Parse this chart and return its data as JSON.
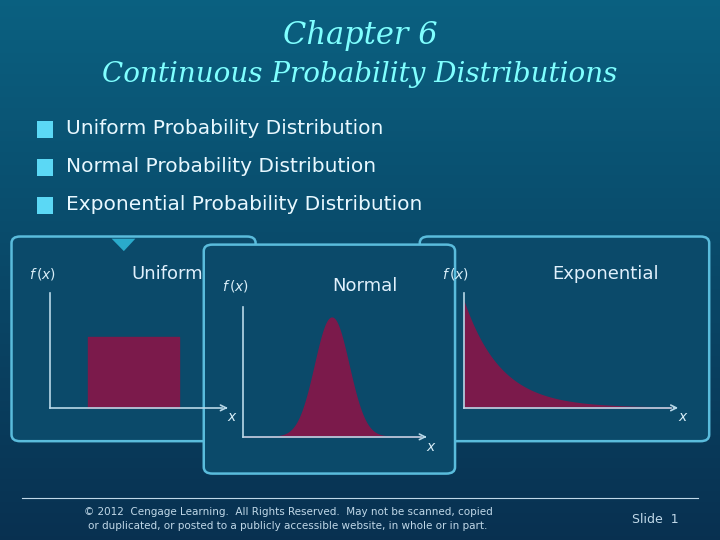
{
  "title_line1": "Chapter 6",
  "title_line2": "Continuous Probability Distributions",
  "title_color": "#7FFFFF",
  "bullet_color": "#5BD8F5",
  "bullet_text_color": "#E8F8FF",
  "bullets": [
    "Uniform Probability Distribution",
    "Normal Probability Distribution",
    "Exponential Probability Distribution"
  ],
  "plot_fill": "#7B1A4B",
  "axes_color": "#B8D8E8",
  "label_color": "#D8EEF8",
  "footer_color": "#C0D8E8",
  "footer_text1": "© 2012  Cengage Learning.  All Rights Reserved.  May not be scanned, copied",
  "footer_text2": "or duplicated, or posted to a publicly accessible website, in whole or in part.",
  "slide_text": "Slide  1",
  "arrow_color": "#2AABCC",
  "box_face": "#0B4A6A",
  "box_edge": "#5ABCDC",
  "bg_grad_top": "#0A6080",
  "bg_grad_bottom": "#083050"
}
